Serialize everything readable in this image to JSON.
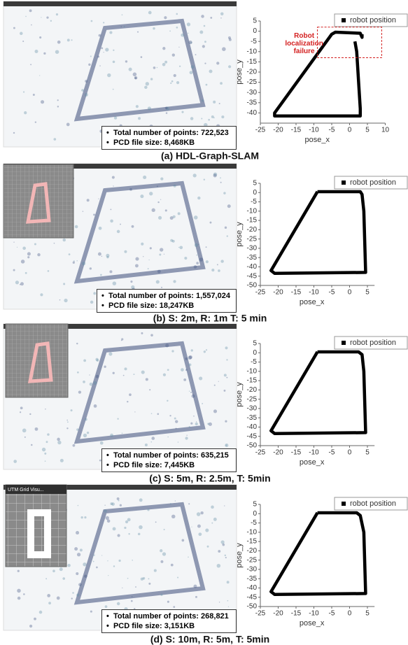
{
  "panels": [
    {
      "caption": "(a) HDL-Graph-SLAM",
      "info": [
        "Total number of points: 722,523",
        "PCD file size: 8,468KB"
      ]
    },
    {
      "caption": "(b) S: 2m, R: 1m T: 5 min",
      "info": [
        "Total number of points: 1,557,024",
        "PCD file size: 18,247KB"
      ]
    },
    {
      "caption": "(c) S: 5m, R: 2.5m, T: 5min",
      "info": [
        "Total number of points: 635,215",
        "PCD file size: 7,445KB"
      ]
    },
    {
      "caption": "(d) S: 10m, R: 5m, T: 5min",
      "info": [
        "Total number of points: 268,821",
        "PCD file size: 3,151KB"
      ],
      "inset_title": "UTM Grid Visu..."
    }
  ],
  "chart_data": [
    {
      "type": "line",
      "x_label": "pose_x",
      "y_label": "pose_y",
      "annotation": "Robot localization failure",
      "x": [
        3.5,
        3.5,
        3,
        -4,
        -5,
        -21,
        -21,
        3,
        3,
        2,
        1.5
      ],
      "series": [
        {
          "name": "robot position",
          "color": "#000000",
          "values": [
            -1.5,
            -3,
            -1,
            -0.5,
            -1.5,
            -40,
            -41.5,
            -41.5,
            -38,
            -10,
            -5
          ]
        }
      ],
      "xlim": [
        -25,
        10
      ],
      "xticks": [
        -25,
        -20,
        -15,
        -10,
        -5,
        0,
        5,
        10
      ],
      "ylim": [
        -45,
        5
      ],
      "yticks": [
        5,
        0,
        -5,
        -10,
        -15,
        -20,
        -25,
        -30,
        -35,
        -40
      ]
    },
    {
      "type": "line",
      "x_label": "pose_x",
      "y_label": "pose_y",
      "x": [
        -9,
        3,
        3.5,
        4,
        4.5,
        -21,
        -22,
        -9
      ],
      "series": [
        {
          "name": "robot position",
          "color": "#000000",
          "values": [
            0.5,
            0.5,
            -1,
            -10,
            -43,
            -43.5,
            -42,
            0.5
          ]
        }
      ],
      "xlim": [
        -25,
        7
      ],
      "xticks": [
        -25,
        -20,
        -15,
        -10,
        -5,
        0,
        5
      ],
      "ylim": [
        -50,
        5
      ],
      "yticks": [
        5,
        0,
        -5,
        -10,
        -15,
        -20,
        -25,
        -30,
        -35,
        -40,
        -45,
        -50
      ]
    },
    {
      "type": "line",
      "x_label": "pose_x",
      "y_label": "pose_y",
      "x": [
        -9,
        2.5,
        3.5,
        4,
        4.5,
        -21,
        -22,
        -9
      ],
      "series": [
        {
          "name": "robot position",
          "color": "#000000",
          "values": [
            0.5,
            0.5,
            -1,
            -10,
            -43,
            -43.5,
            -42,
            0.5
          ]
        }
      ],
      "xlim": [
        -25,
        7
      ],
      "xticks": [
        -25,
        -20,
        -15,
        -10,
        -5,
        0,
        5
      ],
      "ylim": [
        -50,
        5
      ],
      "yticks": [
        5,
        0,
        -5,
        -10,
        -15,
        -20,
        -25,
        -30,
        -35,
        -40,
        -45,
        -50
      ]
    },
    {
      "type": "line",
      "x_label": "pose_x",
      "y_label": "pose_y",
      "x": [
        -9,
        2,
        3,
        4,
        4.5,
        -21,
        -22,
        -9
      ],
      "series": [
        {
          "name": "robot position",
          "color": "#000000",
          "values": [
            0.5,
            0.5,
            -1,
            -10,
            -43,
            -43.5,
            -42,
            0.5
          ]
        }
      ],
      "xlim": [
        -25,
        7
      ],
      "xticks": [
        -25,
        -20,
        -15,
        -10,
        -5,
        0,
        5
      ],
      "ylim": [
        -50,
        5
      ],
      "yticks": [
        5,
        0,
        -5,
        -10,
        -15,
        -20,
        -25,
        -30,
        -35,
        -40,
        -45,
        -50
      ]
    }
  ]
}
